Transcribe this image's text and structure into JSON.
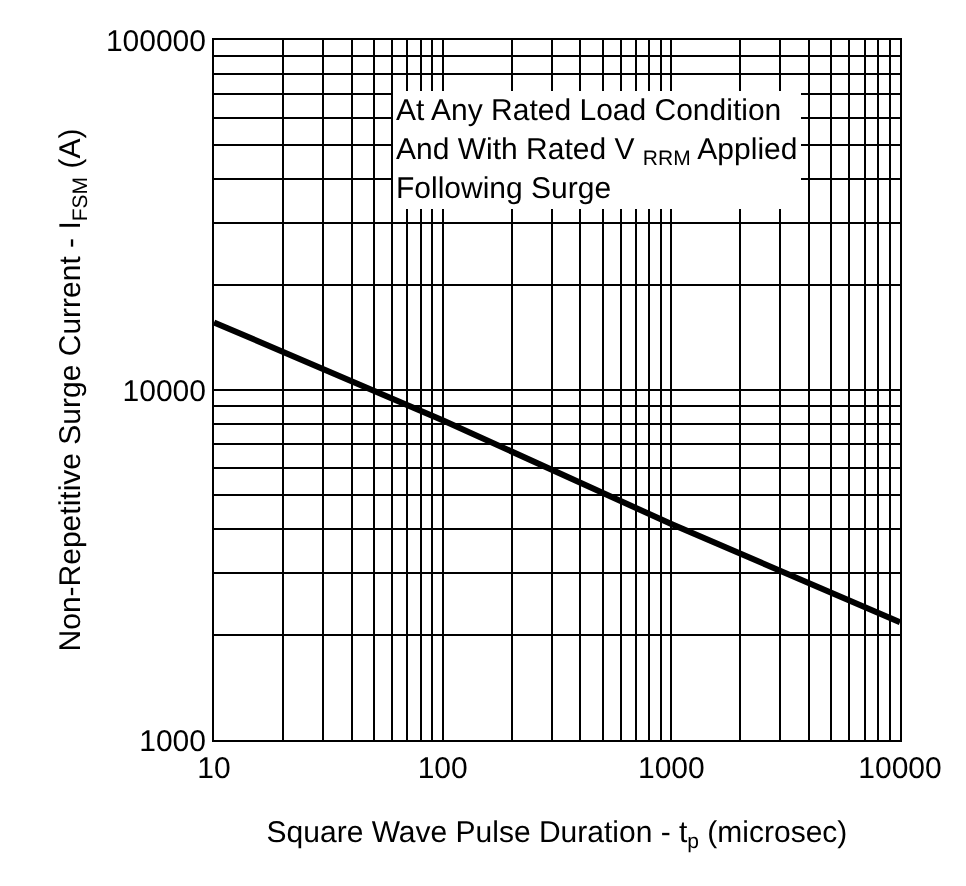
{
  "chart_data": {
    "type": "line",
    "xlabel": "Square Wave Pulse Duration - t$_{p}$ (microsec)",
    "ylabel": "Non-Repetitive Surge Current - I$_{FSM}$ (A)",
    "annotations": [
      "At Any Rated Load Condition\nAnd With Rated V $_{RRM}$ Applied\nFollowing Surge"
    ],
    "x": [
      10,
      100,
      1000,
      10000
    ],
    "series": [
      {
        "color": "#000000",
        "values": [
          15600,
          8200,
          4140,
          2170
        ]
      }
    ],
    "log": "xy",
    "grid": true,
    "marker": "none",
    "line_style": "solid",
    "xlim": [
      10,
      10000
    ],
    "xticks": [
      10,
      100,
      1000,
      10000
    ],
    "ylim": [
      1000,
      100000
    ],
    "yticks": [
      1000,
      10000,
      100000
    ]
  }
}
